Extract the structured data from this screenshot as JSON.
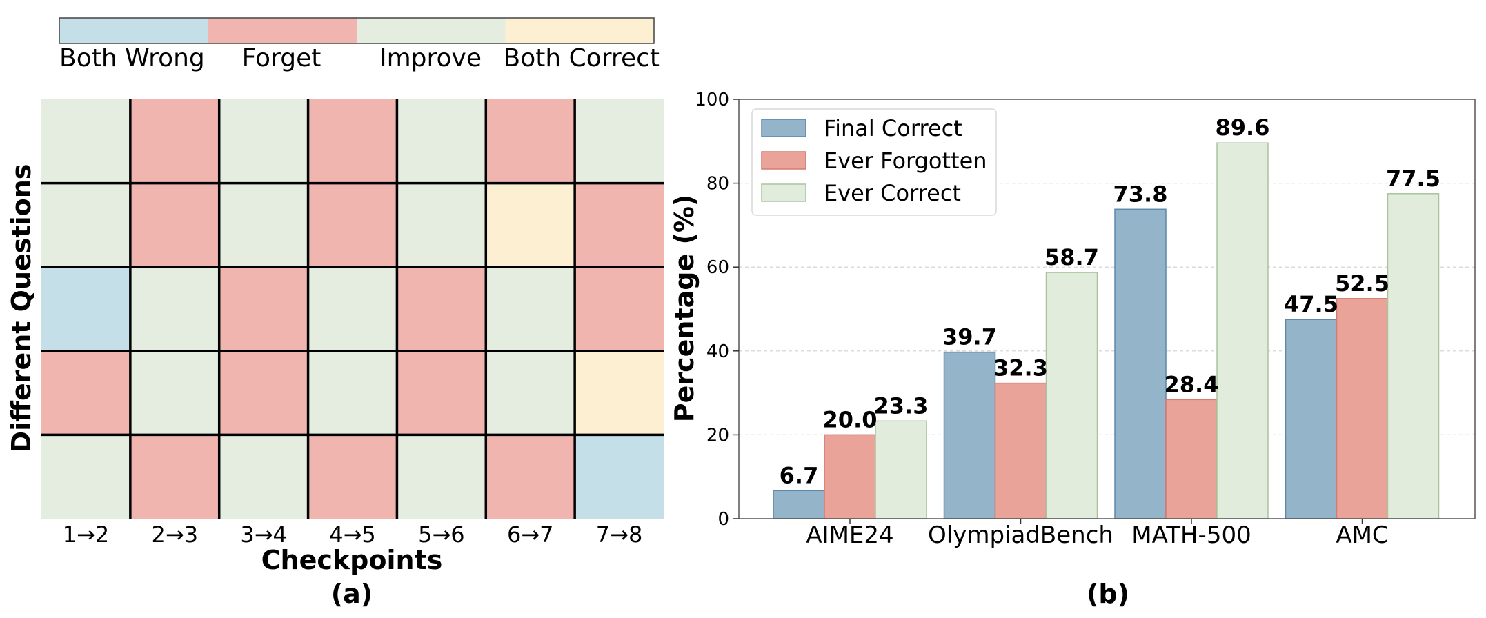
{
  "colors": {
    "both_wrong": "#c5dfe9",
    "forget": "#efb5ae",
    "improve": "#e5ede0",
    "both_correct": "#fdefd2",
    "final_correct": "#94b4c9",
    "ever_forgotten": "#eaa399",
    "ever_correct": "#e2ecdc",
    "final_correct_edge": "#5f87a8",
    "ever_forgotten_edge": "#d47a6f",
    "ever_correct_edge": "#a9c49d"
  },
  "chart_data": [
    {
      "type": "heatmap",
      "subplot_label": "(a)",
      "xlabel": "Checkpoints",
      "ylabel": "Different Questions",
      "x_categories": [
        "1→2",
        "2→3",
        "3→4",
        "4→5",
        "5→6",
        "6→7",
        "7→8"
      ],
      "legend": [
        "Both Wrong",
        "Forget",
        "Improve",
        "Both Correct"
      ],
      "legend_keys": [
        "both_wrong",
        "forget",
        "improve",
        "both_correct"
      ],
      "grid": [
        [
          "improve",
          "forget",
          "improve",
          "forget",
          "improve",
          "forget",
          "improve"
        ],
        [
          "improve",
          "forget",
          "improve",
          "forget",
          "improve",
          "both_correct",
          "forget"
        ],
        [
          "both_wrong",
          "improve",
          "forget",
          "improve",
          "forget",
          "improve",
          "forget"
        ],
        [
          "forget",
          "improve",
          "forget",
          "improve",
          "forget",
          "improve",
          "both_correct"
        ],
        [
          "improve",
          "forget",
          "improve",
          "forget",
          "improve",
          "forget",
          "both_wrong"
        ]
      ]
    },
    {
      "type": "bar",
      "subplot_label": "(b)",
      "xlabel": "",
      "ylabel": "Percentage (%)",
      "ylim": [
        0,
        100
      ],
      "yticks": [
        0,
        20,
        40,
        60,
        80,
        100
      ],
      "grid": true,
      "legend_position": "top-left",
      "categories": [
        "AIME24",
        "OlympiadBench",
        "MATH-500",
        "AMC"
      ],
      "series": [
        {
          "name": "Final Correct",
          "values": [
            6.7,
            39.7,
            73.8,
            47.5
          ],
          "labels": [
            "6.7",
            "39.7",
            "73.8",
            "47.5"
          ],
          "color_key": "final_correct"
        },
        {
          "name": "Ever Forgotten",
          "values": [
            20.0,
            32.3,
            28.4,
            52.5
          ],
          "labels": [
            "20.0",
            "32.3",
            "28.4",
            "52.5"
          ],
          "color_key": "ever_forgotten"
        },
        {
          "name": "Ever Correct",
          "values": [
            23.3,
            58.7,
            89.6,
            77.5
          ],
          "labels": [
            "23.3",
            "58.7",
            "89.6",
            "77.5"
          ],
          "color_key": "ever_correct"
        }
      ]
    }
  ]
}
